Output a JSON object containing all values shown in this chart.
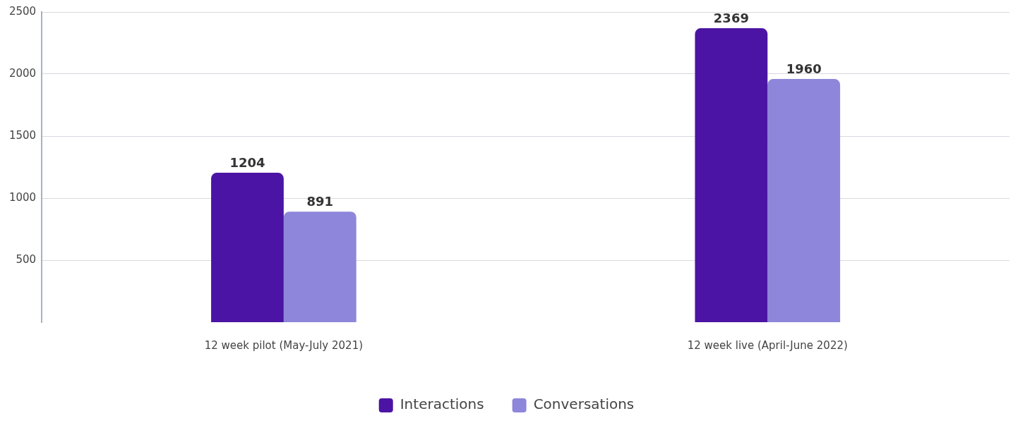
{
  "chart_data": {
    "type": "bar",
    "categories": [
      "12 week pilot (May-July 2021)",
      "12 week live (April-June 2022)"
    ],
    "series": [
      {
        "name": "Interactions",
        "color": "#4c14a4",
        "values": [
          1204,
          2369
        ]
      },
      {
        "name": "Conversations",
        "color": "#8e86da",
        "values": [
          891,
          1960
        ]
      }
    ],
    "ylim": [
      0,
      2500
    ],
    "yticks": [
      500,
      1000,
      1500,
      2000,
      2500
    ],
    "grid": "y",
    "legend": "bottom",
    "data_labels": true
  }
}
